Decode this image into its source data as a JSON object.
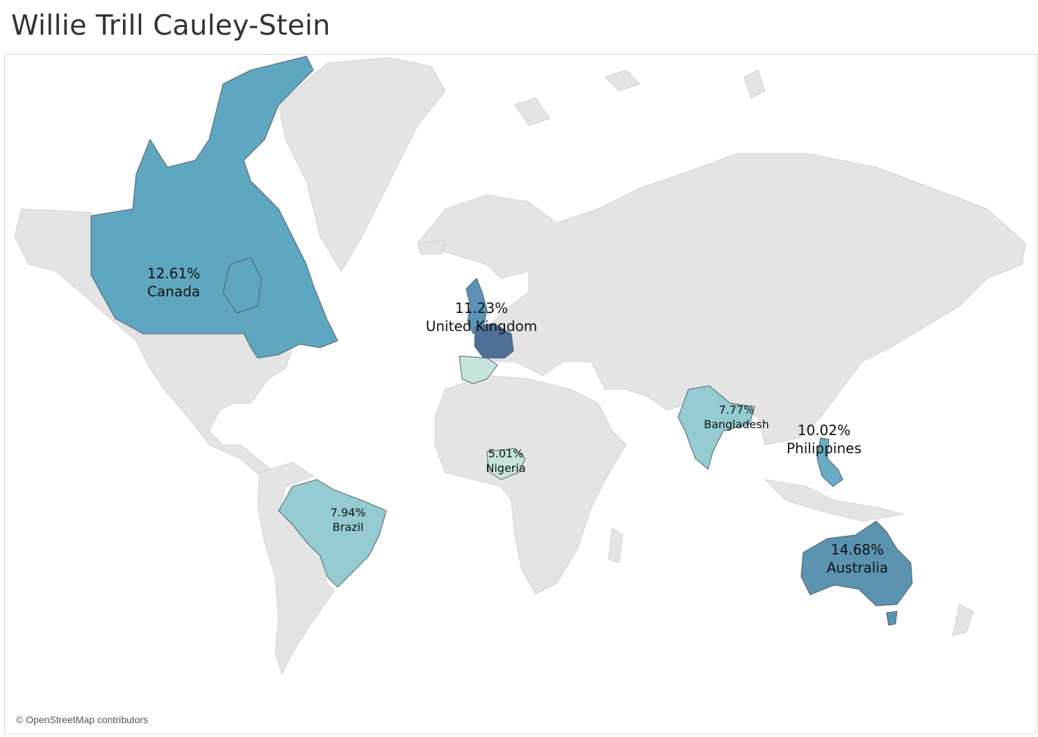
{
  "title": "Willie Trill Cauley-Stein",
  "attribution": "© OpenStreetMap contributors",
  "colors": {
    "background_land": "#e4e4e4",
    "scale_low": "#c6e3dc",
    "scale_mid": "#94ccd1",
    "scale_high": "#5fa6c0",
    "scale_top": "#4e7096"
  },
  "regions": [
    {
      "id": "canada",
      "country": "Canada",
      "value": "12.61%",
      "color": "#5fa6c0"
    },
    {
      "id": "uk",
      "country": "United Kingdom",
      "value": "11.23%",
      "color": "#5b93b7"
    },
    {
      "id": "france",
      "country": "",
      "value": "",
      "color": "#4e7096"
    },
    {
      "id": "spain",
      "country": "",
      "value": "",
      "color": "#c6e3dc"
    },
    {
      "id": "bangladesh",
      "country": "Bangladesh",
      "value": "7.77%",
      "color": "#94ccd1"
    },
    {
      "id": "philippines",
      "country": "Philippines",
      "value": "10.02%",
      "color": "#6aabc6"
    },
    {
      "id": "nigeria",
      "country": "Nigeria",
      "value": "5.01%",
      "color": "#c6e3dc"
    },
    {
      "id": "brazil",
      "country": "Brazil",
      "value": "7.94%",
      "color": "#94ccd1"
    },
    {
      "id": "australia",
      "country": "Australia",
      "value": "14.68%",
      "color": "#5b93b0"
    }
  ]
}
